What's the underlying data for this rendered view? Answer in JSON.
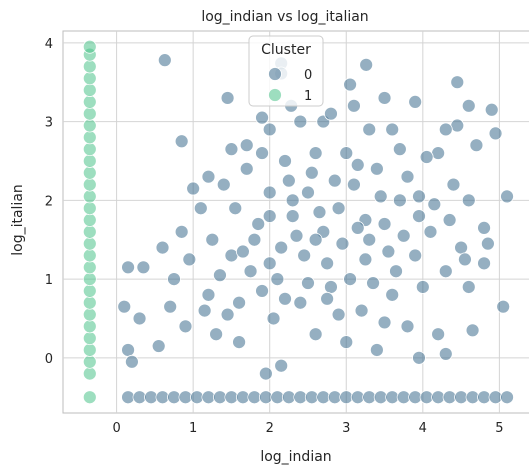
{
  "chart_data": {
    "type": "scatter",
    "title": "log_indian vs log_italian",
    "xlabel": "log_indian",
    "ylabel": "log_italian",
    "xlim": [
      -0.7,
      5.4
    ],
    "ylim": [
      -0.7,
      4.15
    ],
    "xticks": [
      0,
      1,
      2,
      3,
      4,
      5
    ],
    "yticks": [
      0,
      1,
      2,
      3,
      4
    ],
    "grid": true,
    "legend": {
      "title": "Cluster",
      "placement": "top-center",
      "entries": [
        {
          "label": "0",
          "color": "#3e6e8e"
        },
        {
          "label": "1",
          "color": "#4cc38a"
        }
      ]
    },
    "series": [
      {
        "name": "0",
        "color": "#3e6e8e",
        "points": [
          [
            0.63,
            3.78
          ],
          [
            2.15,
            3.74
          ],
          [
            2.15,
            3.61
          ],
          [
            3.26,
            3.72
          ],
          [
            4.45,
            3.5
          ],
          [
            3.05,
            3.47
          ],
          [
            3.5,
            3.3
          ],
          [
            1.45,
            3.3
          ],
          [
            2.28,
            3.2
          ],
          [
            1.9,
            3.05
          ],
          [
            4.9,
            3.15
          ],
          [
            3.9,
            3.25
          ],
          [
            4.6,
            3.2
          ],
          [
            2.7,
            3.0
          ],
          [
            3.1,
            3.2
          ],
          [
            0.85,
            2.75
          ],
          [
            4.95,
            2.85
          ],
          [
            2.0,
            2.9
          ],
          [
            1.7,
            2.7
          ],
          [
            4.45,
            2.95
          ],
          [
            1.0,
            2.15
          ],
          [
            0.6,
            1.4
          ],
          [
            0.85,
            1.6
          ],
          [
            0.35,
            1.15
          ],
          [
            0.15,
            1.15
          ],
          [
            0.1,
            0.65
          ],
          [
            0.3,
            0.5
          ],
          [
            0.55,
            0.15
          ],
          [
            0.15,
            0.1
          ],
          [
            0.2,
            -0.05
          ],
          [
            1.95,
            -0.2
          ],
          [
            2.15,
            -0.1
          ],
          [
            3.95,
            0.0
          ],
          [
            4.3,
            0.05
          ],
          [
            5.05,
            0.65
          ],
          [
            4.65,
            0.35
          ],
          [
            4.85,
            1.45
          ],
          [
            5.1,
            2.05
          ],
          [
            4.8,
            1.65
          ],
          [
            4.6,
            2.0
          ],
          [
            1.2,
            0.8
          ],
          [
            1.35,
            1.05
          ],
          [
            1.6,
            0.7
          ],
          [
            1.5,
            1.3
          ],
          [
            1.8,
            1.5
          ],
          [
            2.0,
            1.2
          ],
          [
            2.3,
            1.8
          ],
          [
            2.5,
            2.1
          ],
          [
            2.7,
            1.6
          ],
          [
            2.9,
            1.9
          ],
          [
            3.1,
            2.2
          ],
          [
            3.3,
            1.5
          ],
          [
            3.5,
            1.7
          ],
          [
            3.7,
            2.0
          ],
          [
            3.9,
            1.3
          ],
          [
            4.1,
            1.6
          ],
          [
            4.3,
            1.1
          ],
          [
            4.5,
            1.4
          ],
          [
            2.2,
            2.5
          ],
          [
            2.6,
            2.6
          ],
          [
            3.0,
            2.6
          ],
          [
            3.4,
            2.4
          ],
          [
            3.8,
            2.3
          ],
          [
            2.1,
            1.0
          ],
          [
            2.4,
            0.7
          ],
          [
            2.8,
            0.9
          ],
          [
            3.2,
            0.6
          ],
          [
            3.6,
            0.8
          ],
          [
            4.0,
            0.9
          ],
          [
            1.1,
            1.9
          ],
          [
            1.4,
            2.2
          ],
          [
            1.7,
            2.4
          ],
          [
            2.0,
            2.1
          ],
          [
            3.6,
            2.9
          ],
          [
            3.3,
            2.9
          ],
          [
            2.8,
            3.1
          ],
          [
            2.4,
            3.0
          ],
          [
            1.9,
            2.6
          ],
          [
            4.2,
            2.6
          ],
          [
            4.4,
            2.2
          ],
          [
            4.7,
            2.7
          ],
          [
            1.3,
            0.3
          ],
          [
            1.6,
            0.2
          ],
          [
            2.6,
            0.3
          ],
          [
            3.0,
            0.2
          ],
          [
            3.4,
            0.1
          ],
          [
            3.8,
            0.4
          ],
          [
            4.2,
            0.3
          ],
          [
            0.9,
            0.4
          ],
          [
            0.75,
            1.0
          ],
          [
            1.25,
            1.5
          ],
          [
            1.55,
            1.9
          ],
          [
            1.85,
            1.7
          ],
          [
            2.15,
            1.4
          ],
          [
            2.45,
            1.3
          ],
          [
            2.75,
            1.2
          ],
          [
            3.05,
            1.0
          ],
          [
            3.35,
            0.95
          ],
          [
            3.65,
            1.1
          ],
          [
            3.95,
            1.8
          ],
          [
            2.35,
            1.55
          ],
          [
            2.65,
            1.85
          ],
          [
            2.95,
            1.45
          ],
          [
            3.25,
            1.75
          ],
          [
            2.55,
            2.35
          ],
          [
            2.25,
            2.25
          ],
          [
            3.15,
            2.45
          ],
          [
            1.75,
            1.1
          ],
          [
            1.45,
            0.55
          ],
          [
            2.05,
            0.5
          ],
          [
            2.5,
            0.95
          ],
          [
            2.9,
            0.55
          ],
          [
            3.5,
            0.45
          ],
          [
            4.6,
            0.9
          ],
          [
            4.8,
            1.2
          ],
          [
            0.95,
            1.25
          ],
          [
            1.15,
            0.6
          ],
          [
            1.5,
            2.65
          ],
          [
            1.2,
            2.3
          ],
          [
            0.7,
            0.65
          ],
          [
            4.3,
            2.9
          ],
          [
            4.05,
            2.55
          ],
          [
            3.7,
            2.65
          ],
          [
            3.95,
            2.05
          ],
          [
            4.15,
            1.95
          ],
          [
            4.35,
            1.75
          ],
          [
            4.55,
            1.25
          ],
          [
            2.0,
            1.8
          ],
          [
            2.3,
            2.0
          ],
          [
            2.6,
            1.5
          ],
          [
            2.85,
            2.25
          ],
          [
            3.15,
            1.65
          ],
          [
            3.45,
            2.05
          ],
          [
            3.75,
            1.55
          ],
          [
            1.65,
            1.35
          ],
          [
            1.9,
            0.85
          ],
          [
            2.2,
            0.75
          ],
          [
            2.75,
            0.75
          ],
          [
            3.25,
            1.25
          ],
          [
            3.55,
            1.35
          ]
        ],
        "baseline_points_y": -0.5,
        "baseline_points_x": [
          0.15,
          0.3,
          0.45,
          0.6,
          0.75,
          0.9,
          1.05,
          1.2,
          1.35,
          1.5,
          1.65,
          1.8,
          1.95,
          2.1,
          2.25,
          2.4,
          2.55,
          2.7,
          2.85,
          3.0,
          3.15,
          3.3,
          3.45,
          3.6,
          3.75,
          3.9,
          4.05,
          4.2,
          4.35,
          4.5,
          4.65,
          4.8,
          4.95,
          5.1
        ]
      },
      {
        "name": "1",
        "color": "#4cc38a",
        "x_value": -0.35,
        "y_values": [
          -0.5,
          -0.2,
          -0.05,
          0.1,
          0.25,
          0.4,
          0.55,
          0.7,
          0.85,
          1.0,
          1.15,
          1.3,
          1.45,
          1.6,
          1.75,
          1.9,
          2.05,
          2.2,
          2.35,
          2.5,
          2.65,
          2.8,
          2.95,
          3.1,
          3.25,
          3.4,
          3.55,
          3.7,
          3.85,
          3.95
        ]
      }
    ]
  }
}
